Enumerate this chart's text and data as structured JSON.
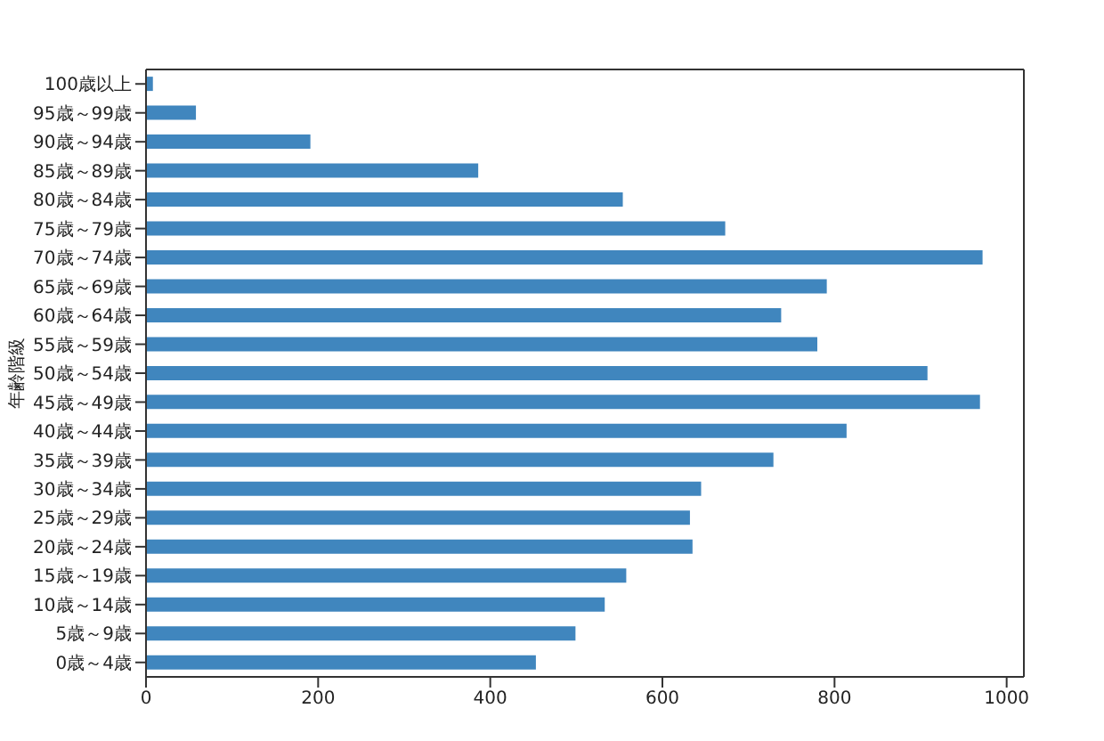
{
  "chart_data": {
    "type": "bar",
    "orientation": "horizontal",
    "ylabel": "年齢階級",
    "categories": [
      "100歳以上",
      "95歳～99歳",
      "90歳～94歳",
      "85歳～89歳",
      "80歳～84歳",
      "75歳～79歳",
      "70歳～74歳",
      "65歳～69歳",
      "60歳～64歳",
      "55歳～59歳",
      "50歳～54歳",
      "45歳～49歳",
      "40歳～44歳",
      "35歳～39歳",
      "30歳～34歳",
      "25歳～29歳",
      "20歳～24歳",
      "15歳～19歳",
      "10歳～14歳",
      "5歳～9歳",
      "0歳～4歳"
    ],
    "values": [
      8,
      58,
      191,
      386,
      554,
      673,
      972,
      791,
      738,
      780,
      908,
      969,
      814,
      729,
      645,
      632,
      635,
      558,
      533,
      499,
      453
    ],
    "color": "#4086be",
    "xlim": [
      0,
      1020
    ],
    "xticks": [
      0,
      200,
      400,
      600,
      800,
      1000
    ]
  }
}
